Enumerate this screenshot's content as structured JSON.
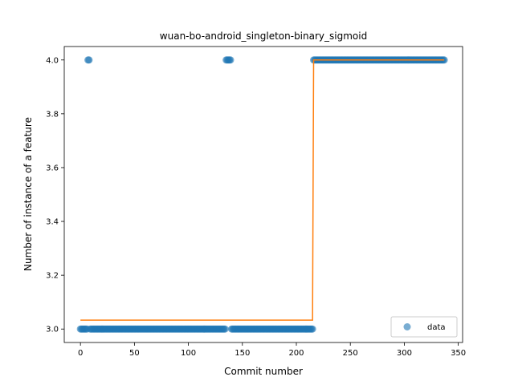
{
  "chart_data": {
    "type": "scatter",
    "title": "wuan-bo-android_singleton-binary_sigmoid",
    "xlabel": "Commit number",
    "ylabel": "Number of instance of a feature",
    "xlim": [
      -15,
      354
    ],
    "ylim": [
      2.95,
      4.05
    ],
    "xticks": [
      0,
      50,
      100,
      150,
      200,
      250,
      300,
      350
    ],
    "yticks": [
      3.0,
      3.2,
      3.4,
      3.6,
      3.8,
      4.0
    ],
    "xtick_labels": [
      "0",
      "50",
      "100",
      "150",
      "200",
      "250",
      "300",
      "350"
    ],
    "ytick_labels": [
      "3.0",
      "3.2",
      "3.4",
      "3.6",
      "3.8",
      "4.0"
    ],
    "grid": false,
    "legend": {
      "entries": [
        "data"
      ],
      "placement": "lower-right"
    },
    "series": [
      {
        "name": "data",
        "kind": "points",
        "color": "#1f77b4",
        "groups": [
          {
            "x_from": 0,
            "x_to": 6,
            "y": 3.0
          },
          {
            "x_from": 7,
            "x_to": 8,
            "y": 4.0
          },
          {
            "x_from": 9,
            "x_to": 134,
            "y": 3.0
          },
          {
            "x_from": 135,
            "x_to": 139,
            "y": 4.0
          },
          {
            "x_from": 140,
            "x_to": 215,
            "y": 3.0
          },
          {
            "x_from": 216,
            "x_to": 337,
            "y": 4.0
          }
        ]
      },
      {
        "kind": "line",
        "color": "#ff7f0e",
        "x": [
          0,
          215,
          216,
          337
        ],
        "y": [
          3.033,
          3.033,
          4.0,
          4.0
        ]
      }
    ]
  }
}
